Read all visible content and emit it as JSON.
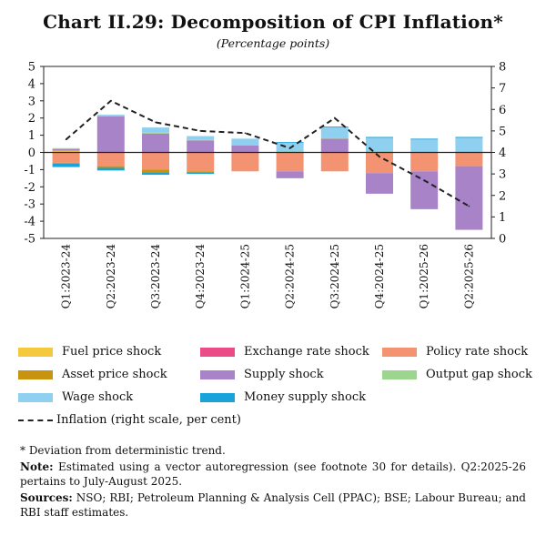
{
  "title": "Chart II.29: Decomposition of CPI Inflation*",
  "subtitle": "(Percentage points)",
  "colors": {
    "fuel": "#F5C93E",
    "exchange": "#EB4B87",
    "policy": "#F39372",
    "asset": "#C8930F",
    "supply": "#A883C8",
    "output": "#9CD68E",
    "wage": "#8FCFEF",
    "money": "#1AA3D9",
    "inflation": "#222222"
  },
  "legend": {
    "fuel": "Fuel price shock",
    "exchange": "Exchange rate shock",
    "policy": "Policy rate shock",
    "asset": "Asset price shock",
    "supply": "Supply shock",
    "output": "Output gap shock",
    "wage": "Wage shock",
    "money": "Money supply shock",
    "inflation": "Inflation (right scale, per cent)"
  },
  "notes": {
    "footnote": "* Deviation from deterministic trend.",
    "note_label": "Note:",
    "note_text": "Estimated using a vector autoregression (see footnote 30 for details). Q2:2025-26 pertains to July-August 2025.",
    "sources_label": "Sources:",
    "sources_text": "NSO; RBI; Petroleum Planning & Analysis Cell (PPAC); BSE; Labour Bureau; and RBI staff estimates."
  },
  "chart_data": {
    "type": "bar",
    "stacked": true,
    "title": "Decomposition of CPI Inflation",
    "categories": [
      "Q1:2023-24",
      "Q2:2023-24",
      "Q3:2023-24",
      "Q4:2023-24",
      "Q1:2024-25",
      "Q2:2024-25",
      "Q3:2024-25",
      "Q4:2024-25",
      "Q1:2025-26",
      "Q2:2025-26"
    ],
    "ylim": [
      -5,
      5
    ],
    "yticks": [
      5,
      4,
      3,
      2,
      1,
      0,
      -1,
      -2,
      -3,
      -4,
      -5
    ],
    "ylim_right": [
      0,
      8
    ],
    "yticks_right": [
      8,
      7,
      6,
      5,
      4,
      3,
      2,
      1,
      0
    ],
    "series": [
      {
        "key": "fuel",
        "name": "Fuel price shock",
        "values": [
          0.1,
          0.0,
          0.0,
          0.0,
          0.0,
          0.0,
          0.0,
          0.0,
          0.0,
          0.0
        ]
      },
      {
        "key": "exchange",
        "name": "Exchange rate shock",
        "values": [
          0.0,
          0.0,
          0.0,
          0.0,
          0.0,
          0.0,
          0.0,
          0.0,
          0.0,
          0.0
        ]
      },
      {
        "key": "policy",
        "name": "Policy rate shock",
        "values": [
          -0.6,
          -0.8,
          -1.0,
          -1.1,
          -1.1,
          -1.1,
          -1.1,
          -1.2,
          -1.1,
          -0.8
        ]
      },
      {
        "key": "asset",
        "name": "Asset price shock",
        "values": [
          -0.05,
          -0.1,
          -0.15,
          -0.05,
          0.0,
          0.0,
          0.0,
          0.0,
          0.0,
          0.0
        ]
      },
      {
        "key": "supply",
        "name": "Supply shock",
        "values": [
          0.1,
          2.1,
          1.1,
          0.7,
          0.4,
          -0.4,
          0.8,
          -1.2,
          -2.2,
          -3.7
        ]
      },
      {
        "key": "output",
        "name": "Output gap shock",
        "values": [
          0.05,
          0.05,
          0.05,
          0.05,
          0.05,
          0.05,
          0.05,
          0.05,
          0.0,
          0.0
        ]
      },
      {
        "key": "wage",
        "name": "Wage shock",
        "values": [
          0.0,
          0.05,
          0.3,
          0.2,
          0.35,
          0.5,
          0.6,
          0.8,
          0.75,
          0.85
        ]
      },
      {
        "key": "money",
        "name": "Money supply shock",
        "values": [
          -0.2,
          -0.15,
          -0.15,
          -0.1,
          0.0,
          0.05,
          0.05,
          0.05,
          0.05,
          0.05
        ]
      }
    ],
    "line": {
      "key": "inflation",
      "name": "Inflation (right scale, per cent)",
      "axis": "right",
      "values": [
        4.6,
        6.4,
        5.4,
        5.0,
        4.9,
        4.2,
        5.6,
        3.8,
        2.7,
        1.5
      ]
    }
  }
}
